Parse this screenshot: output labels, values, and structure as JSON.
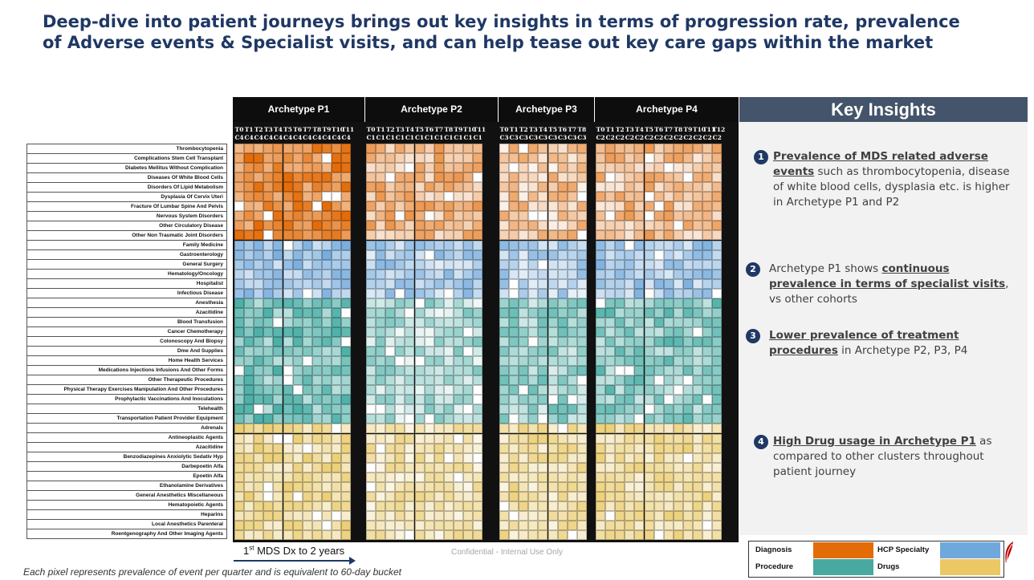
{
  "title": "Deep-dive into patient journeys brings out key insights in terms of progression rate, prevalence of Adverse events & Specialist visits, and can help tease out key care gaps within the market",
  "archetypes": [
    {
      "name": "Archetype P1",
      "timepoints": [
        "T0",
        "T1",
        "T2",
        "T3",
        "T4",
        "T5",
        "T6",
        "T7",
        "T8",
        "T9",
        "T10",
        "T11"
      ],
      "cluster": "C4"
    },
    {
      "name": "Archetype P2",
      "timepoints": [
        "T0",
        "T1",
        "T2",
        "T3",
        "T4",
        "T5",
        "T6",
        "T7",
        "T8",
        "T9",
        "T10",
        "T11"
      ],
      "cluster": "C1"
    },
    {
      "name": "Archetype P3",
      "timepoints": [
        "T0",
        "T1",
        "T2",
        "T3",
        "T4",
        "T5",
        "T6",
        "T7",
        "T8"
      ],
      "cluster": "C3"
    },
    {
      "name": "Archetype P4",
      "timepoints": [
        "T0",
        "T1",
        "T2",
        "T3",
        "T4",
        "T5",
        "T6",
        "T7",
        "T8",
        "T9",
        "T10",
        "T11",
        "T12"
      ],
      "cluster": "C2"
    }
  ],
  "rows": [
    {
      "label": "Thrombocytopenia",
      "group": "diagnosis"
    },
    {
      "label": "Complications Stem Cell Transplant",
      "group": "diagnosis"
    },
    {
      "label": "Diabetes Mellitus Without Complication",
      "group": "diagnosis"
    },
    {
      "label": "Diseases Of White Blood Cells",
      "group": "diagnosis"
    },
    {
      "label": "Disorders Of Lipid Metabolism",
      "group": "diagnosis"
    },
    {
      "label": "Dysplasia Of Cervix Uteri",
      "group": "diagnosis"
    },
    {
      "label": "Fracture Of Lumbar Spine And Pelvis",
      "group": "diagnosis"
    },
    {
      "label": "Nervous System Disorders",
      "group": "diagnosis"
    },
    {
      "label": "Other Circulatory Disease",
      "group": "diagnosis"
    },
    {
      "label": "Other Non Traumatic Joint Disorders",
      "group": "diagnosis"
    },
    {
      "label": "Family Medicine",
      "group": "hcp"
    },
    {
      "label": "Gastroenterology",
      "group": "hcp"
    },
    {
      "label": "General Surgery",
      "group": "hcp"
    },
    {
      "label": "Hematology/Oncology",
      "group": "hcp"
    },
    {
      "label": "Hospitalist",
      "group": "hcp"
    },
    {
      "label": "Infectious Disease",
      "group": "hcp"
    },
    {
      "label": "Anesthesia",
      "group": "procedure"
    },
    {
      "label": "Azacitidine",
      "group": "procedure"
    },
    {
      "label": "Blood Transfusion",
      "group": "procedure"
    },
    {
      "label": "Cancer Chemotherapy",
      "group": "procedure"
    },
    {
      "label": "Colonoscopy And Biopsy",
      "group": "procedure"
    },
    {
      "label": "Dme And Supplies",
      "group": "procedure"
    },
    {
      "label": "Home Health Services",
      "group": "procedure"
    },
    {
      "label": "Medications Injections Infusions And Other Forms",
      "group": "procedure"
    },
    {
      "label": "Other Therapeutic Procedures",
      "group": "procedure"
    },
    {
      "label": "Physical Therapy Exercises Manipulation And Other Procedures",
      "group": "procedure"
    },
    {
      "label": "Prophylactic Vaccinations And Inoculations",
      "group": "procedure"
    },
    {
      "label": "Telehealth",
      "group": "procedure"
    },
    {
      "label": "Transportation Patient Provider Equipment",
      "group": "procedure"
    },
    {
      "label": "Adrenals",
      "group": "drugs"
    },
    {
      "label": "Antineoplastic Agents",
      "group": "drugs"
    },
    {
      "label": "Azacitidine",
      "group": "drugs"
    },
    {
      "label": "Benzodiazepines Anxiolytic Sedativ Hyp",
      "group": "drugs"
    },
    {
      "label": "Darbepoetin Alfa",
      "group": "drugs"
    },
    {
      "label": "Epoetin Alfa",
      "group": "drugs"
    },
    {
      "label": "Ethanolamine Derivatives",
      "group": "drugs"
    },
    {
      "label": "General Anesthetics Miscellaneous",
      "group": "drugs"
    },
    {
      "label": "Hematopoietic Agents",
      "group": "drugs"
    },
    {
      "label": "Heparins",
      "group": "drugs"
    },
    {
      "label": "Local Anesthetics Parenteral",
      "group": "drugs"
    },
    {
      "label": "Roentgenography And Other Imaging Agents",
      "group": "drugs"
    }
  ],
  "colors": {
    "diagnosis": "#e36c09",
    "hcp": "#5b9bd5",
    "procedure": "#31a39a",
    "drugs": "#e6c253"
  },
  "insights": {
    "header": "Key Insights",
    "items": [
      {
        "num": "1",
        "bold": "Prevalence of MDS related adverse events",
        "text": " such as thrombocytopenia, disease of white blood cells, dysplasia etc. is higher in Archetype P1 and P2"
      },
      {
        "num": "2",
        "lead": "Archetype P1 shows ",
        "bold": "continuous prevalence in terms of specialist visits",
        "text": ", vs other cohorts"
      },
      {
        "num": "3",
        "bold": "Lower prevalence of treatment procedures",
        "text": " in Archetype P2, P3, P4"
      },
      {
        "num": "4",
        "bold": "High Drug usage in Archetype P1",
        "text": " as compared to other clusters throughout patient journey"
      }
    ]
  },
  "axis_note": "1st MDS Dx to 2 years",
  "confidential": "Confidential - Internal Use Only",
  "footnote": "Each pixel represents prevalence of event per quarter and is equivalent to 60-day bucket",
  "legend": {
    "diagnosis": "Diagnosis",
    "hcp": "HCP Specialty",
    "procedure": "Procedure",
    "drugs": "Drugs"
  }
}
